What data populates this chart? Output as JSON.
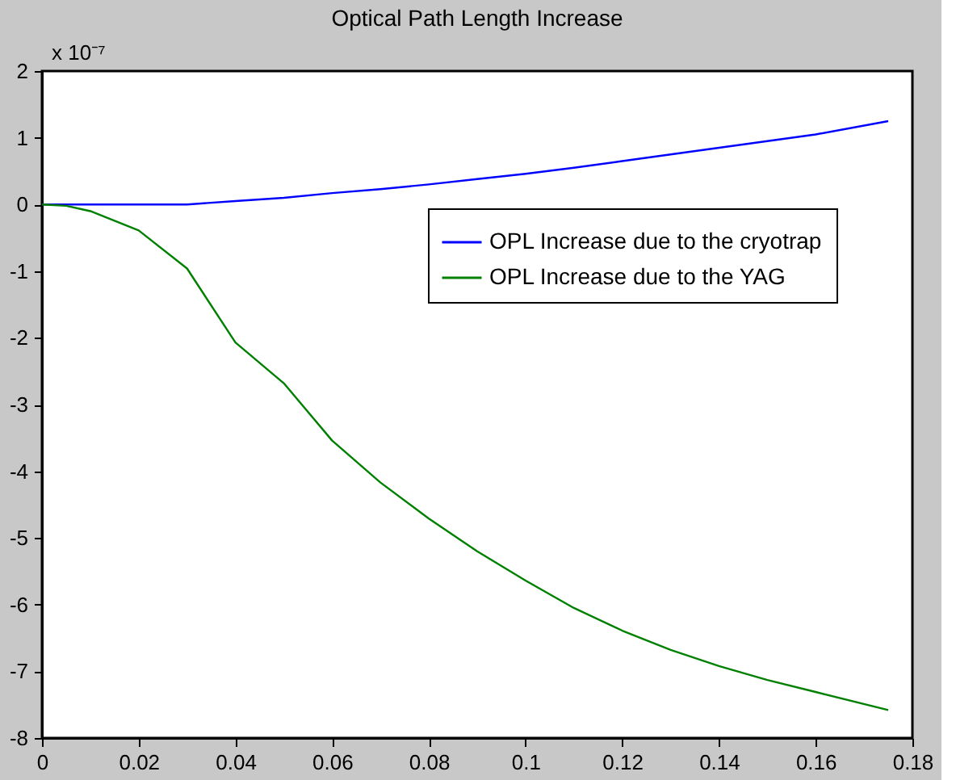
{
  "chart_data": {
    "type": "line",
    "title": "Optical Path Length Increase",
    "annotations": [
      "x 10⁻⁷"
    ],
    "series": [
      {
        "name": "OPL Increase due to the cryotrap",
        "color": "#0000ff",
        "x": [
          0,
          0.01,
          0.02,
          0.03,
          0.04,
          0.05,
          0.06,
          0.07,
          0.08,
          0.09,
          0.1,
          0.11,
          0.12,
          0.13,
          0.14,
          0.15,
          0.16,
          0.175
        ],
        "values": [
          0,
          0,
          0,
          0,
          0.05,
          0.1,
          0.17,
          0.23,
          0.3,
          0.38,
          0.46,
          0.55,
          0.65,
          0.75,
          0.85,
          0.95,
          1.05,
          1.25
        ]
      },
      {
        "name": "OPL Increase due to the YAG",
        "color": "#008000",
        "x": [
          0,
          0.005,
          0.01,
          0.02,
          0.03,
          0.04,
          0.05,
          0.06,
          0.07,
          0.08,
          0.09,
          0.1,
          0.11,
          0.12,
          0.13,
          0.14,
          0.15,
          0.16,
          0.175
        ],
        "values": [
          0,
          -0.02,
          -0.1,
          -0.39,
          -0.96,
          -2.07,
          -2.68,
          -3.54,
          -4.17,
          -4.71,
          -5.2,
          -5.64,
          -6.05,
          -6.39,
          -6.68,
          -6.92,
          -7.13,
          -7.31,
          -7.58
        ]
      }
    ],
    "xlim": [
      0,
      0.18
    ],
    "xticks": [
      0,
      0.02,
      0.04,
      0.06,
      0.08,
      0.1,
      0.12,
      0.14,
      0.16,
      0.18
    ],
    "ylim": [
      -8,
      2
    ],
    "yticks": [
      -8,
      -7,
      -6,
      -5,
      -4,
      -3,
      -2,
      -1,
      0,
      1,
      2
    ],
    "grid": false,
    "legend": "top right",
    "marker": "none",
    "line_style": "solid"
  }
}
